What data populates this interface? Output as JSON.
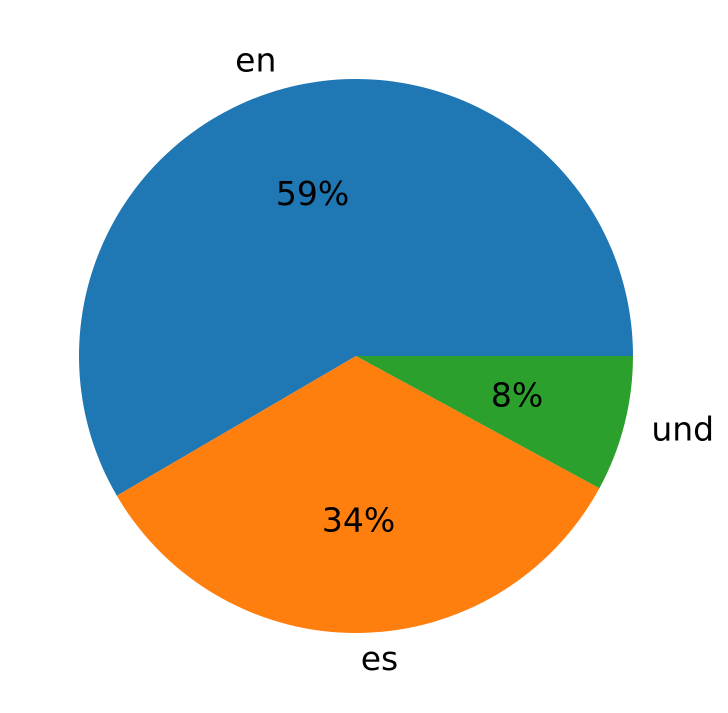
{
  "chart_data": {
    "type": "pie",
    "categories": [
      "en",
      "es",
      "und"
    ],
    "values": [
      59,
      34,
      8
    ],
    "value_labels": [
      "59%",
      "34%",
      "8%"
    ],
    "colors": [
      "#1f77b4",
      "#ff7f0e",
      "#2ca02c"
    ]
  }
}
